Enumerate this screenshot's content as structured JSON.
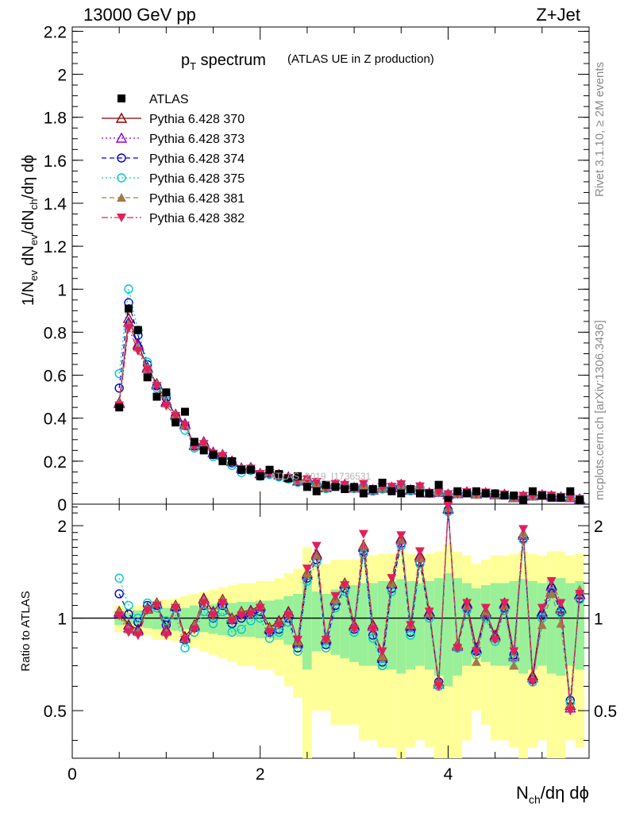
{
  "header": {
    "energy_label": "13000 GeV pp",
    "process_label": "Z+Jet"
  },
  "sidebar": {
    "rivet_label": "Rivet 3.1.10, ≥ 2M events",
    "mcplots_label": "mcplots.cern.ch [arXiv:1306.3436]"
  },
  "chart_data": [
    {
      "type": "scatter",
      "panel": "main",
      "title_main": "p",
      "title_sub": "T",
      "title_rest": " spectrum",
      "subtitle": "(ATLAS UE in Z production)",
      "ylabel": "1/N_ev dN_ev/dN_ch/dη dϕ",
      "xlabel": "N_ch/dη dϕ",
      "xlim": [
        0,
        5.5
      ],
      "ylim": [
        0,
        2.22
      ],
      "yticks": [
        0,
        0.2,
        0.4,
        0.6,
        0.8,
        1,
        1.2,
        1.4,
        1.6,
        1.8,
        2,
        2.2
      ],
      "ytick_labels": [
        "0",
        "0.2",
        "0.4",
        "0.6",
        "0.8",
        "1",
        "1.2",
        "1.4",
        "1.6",
        "1.8",
        "2",
        "2.2"
      ],
      "watermark": "ATLAS_2019_I1736531",
      "x": [
        0.5,
        0.6,
        0.7,
        0.8,
        0.9,
        1.0,
        1.1,
        1.2,
        1.3,
        1.4,
        1.5,
        1.6,
        1.7,
        1.8,
        1.9,
        2.0,
        2.1,
        2.2,
        2.3,
        2.4,
        2.5,
        2.6,
        2.7,
        2.8,
        2.9,
        3.0,
        3.1,
        3.2,
        3.3,
        3.4,
        3.5,
        3.6,
        3.7,
        3.8,
        3.9,
        4.0,
        4.1,
        4.2,
        4.3,
        4.4,
        4.5,
        4.6,
        4.7,
        4.8,
        4.9,
        5.0,
        5.1,
        5.2,
        5.3,
        5.4
      ],
      "series": [
        {
          "name": "ATLAS",
          "marker": "square-filled",
          "color": "#000000",
          "line": "none",
          "values": [
            0.45,
            0.91,
            0.81,
            0.59,
            0.5,
            0.52,
            0.38,
            0.43,
            0.29,
            0.25,
            0.23,
            0.2,
            0.2,
            0.16,
            0.16,
            0.13,
            0.16,
            0.14,
            0.12,
            0.13,
            0.08,
            0.06,
            0.09,
            0.08,
            0.07,
            0.08,
            0.05,
            0.07,
            0.1,
            0.06,
            0.05,
            0.07,
            0.05,
            0.05,
            0.09,
            0.02,
            0.06,
            0.05,
            0.06,
            0.05,
            0.05,
            0.04,
            0.04,
            0.02,
            0.06,
            0.04,
            0.03,
            0.03,
            0.06,
            0.02
          ]
        },
        {
          "name": "Pythia 6.428 370",
          "marker": "triangle-open",
          "color": "#8b0000",
          "line": "solid"
        },
        {
          "name": "Pythia 6.428 373",
          "marker": "triangle-open",
          "color": "#9400d3",
          "line": "dotted"
        },
        {
          "name": "Pythia 6.428 374",
          "marker": "circle-open",
          "color": "#0000cd",
          "line": "dashed"
        },
        {
          "name": "Pythia 6.428 375",
          "marker": "circle-open",
          "color": "#00c8c8",
          "line": "dotted"
        },
        {
          "name": "Pythia 6.428 381",
          "marker": "triangle-filled",
          "color": "#a07a4a",
          "line": "dashed"
        },
        {
          "name": "Pythia 6.428 382",
          "marker": "triangle-down-filled",
          "color": "#e0205a",
          "line": "dashdot"
        }
      ]
    },
    {
      "type": "line",
      "panel": "ratio",
      "ylabel": "Ratio to ATLAS",
      "xlabel": "N_ch/dη dϕ",
      "xlim": [
        0,
        5.5
      ],
      "ylim": [
        0.35,
        2.35
      ],
      "xticks": [
        0,
        2,
        4
      ],
      "xtick_labels": [
        "0",
        "2",
        "4"
      ],
      "yticks": [
        0.5,
        1,
        2
      ],
      "ytick_labels": [
        "0.5",
        "1",
        "2"
      ],
      "x": [
        0.5,
        0.6,
        0.7,
        0.8,
        0.9,
        1.0,
        1.1,
        1.2,
        1.3,
        1.4,
        1.5,
        1.6,
        1.7,
        1.8,
        1.9,
        2.0,
        2.1,
        2.2,
        2.3,
        2.4,
        2.5,
        2.6,
        2.7,
        2.8,
        2.9,
        3.0,
        3.1,
        3.2,
        3.3,
        3.4,
        3.5,
        3.6,
        3.7,
        3.8,
        3.9,
        4.0,
        4.1,
        4.2,
        4.3,
        4.4,
        4.5,
        4.6,
        4.7,
        4.8,
        4.9,
        5.0,
        5.1,
        5.2,
        5.3,
        5.4
      ],
      "ratio_370": [
        1.05,
        0.95,
        0.92,
        1.08,
        1.12,
        0.92,
        1.1,
        0.87,
        0.95,
        1.16,
        1.05,
        1.15,
        1.0,
        1.05,
        1.06,
        1.1,
        0.93,
        0.98,
        1.05,
        0.84,
        1.4,
        1.62,
        0.86,
        1.15,
        1.3,
        0.95,
        1.72,
        0.95,
        0.75,
        1.3,
        1.82,
        0.95,
        1.6,
        1.05,
        0.62,
        2.28,
        0.82,
        1.12,
        0.8,
        1.05,
        0.88,
        1.12,
        0.76,
        1.88,
        0.65,
        1.05,
        1.28,
        1.08,
        0.52,
        1.2
      ],
      "ratio_373": [
        1.04,
        0.93,
        0.91,
        1.07,
        1.11,
        0.91,
        1.09,
        0.86,
        0.94,
        1.15,
        1.04,
        1.14,
        0.99,
        1.04,
        1.05,
        1.09,
        0.92,
        0.97,
        1.04,
        0.83,
        1.38,
        1.6,
        0.85,
        1.14,
        1.29,
        0.94,
        1.7,
        0.94,
        0.74,
        1.29,
        1.8,
        0.94,
        1.58,
        1.04,
        0.61,
        2.26,
        0.81,
        1.11,
        0.79,
        1.04,
        0.87,
        1.11,
        0.75,
        1.86,
        0.64,
        1.04,
        1.27,
        1.07,
        0.51,
        1.19
      ],
      "ratio_374": [
        1.2,
        1.03,
        0.97,
        1.1,
        1.1,
        0.95,
        1.08,
        0.85,
        0.93,
        1.1,
        1.0,
        1.1,
        0.96,
        1.0,
        1.03,
        1.05,
        0.9,
        0.92,
        1.0,
        0.8,
        1.35,
        1.55,
        0.82,
        1.1,
        1.25,
        0.92,
        1.65,
        0.88,
        0.72,
        1.25,
        1.75,
        0.9,
        1.52,
        1.02,
        0.62,
        2.25,
        0.8,
        1.08,
        0.78,
        1.02,
        0.86,
        1.08,
        0.76,
        1.82,
        0.63,
        1.02,
        1.25,
        1.05,
        0.54,
        1.16
      ],
      "ratio_375": [
        1.35,
        1.1,
        1.0,
        1.12,
        1.08,
        0.98,
        1.02,
        0.8,
        0.9,
        1.05,
        0.96,
        1.05,
        0.9,
        0.92,
        0.98,
        1.0,
        0.86,
        0.9,
        0.97,
        0.78,
        1.32,
        1.52,
        0.8,
        1.08,
        1.22,
        0.9,
        1.62,
        0.86,
        0.7,
        1.22,
        1.72,
        0.88,
        1.5,
        1.0,
        0.6,
        2.22,
        0.8,
        1.06,
        0.76,
        1.0,
        0.84,
        1.06,
        0.74,
        1.8,
        0.62,
        1.0,
        1.22,
        1.04,
        0.53,
        1.15
      ],
      "ratio_381": [
        1.05,
        0.92,
        0.9,
        1.07,
        1.12,
        0.9,
        1.1,
        0.86,
        0.95,
        1.15,
        1.04,
        1.15,
        1.0,
        1.05,
        1.05,
        1.1,
        0.93,
        0.97,
        1.04,
        0.84,
        1.4,
        1.6,
        0.86,
        1.15,
        1.3,
        0.94,
        1.72,
        0.94,
        0.75,
        1.3,
        1.8,
        0.95,
        1.58,
        1.04,
        0.62,
        2.28,
        0.82,
        1.1,
        0.72,
        1.05,
        0.86,
        1.1,
        0.7,
        1.9,
        0.64,
        0.95,
        1.2,
        0.96,
        0.52,
        1.24
      ],
      "ratio_382": [
        1.02,
        0.9,
        0.88,
        1.06,
        1.1,
        0.88,
        1.08,
        0.85,
        0.92,
        1.12,
        1.02,
        1.12,
        0.98,
        1.02,
        1.03,
        1.08,
        0.9,
        0.95,
        1.02,
        0.85,
        1.45,
        1.72,
        0.85,
        1.18,
        1.28,
        0.92,
        1.88,
        0.92,
        0.78,
        1.35,
        1.86,
        0.95,
        1.65,
        1.05,
        0.6,
        2.32,
        0.8,
        1.12,
        0.78,
        1.08,
        0.85,
        1.12,
        0.78,
        1.95,
        0.62,
        1.08,
        1.32,
        1.12,
        0.5,
        1.2
      ],
      "band_inner_half_width": [
        0.05,
        0.04,
        0.06,
        0.07,
        0.08,
        0.08,
        0.09,
        0.08,
        0.1,
        0.1,
        0.11,
        0.12,
        0.12,
        0.13,
        0.13,
        0.14,
        0.14,
        0.15,
        0.18,
        0.2,
        0.32,
        0.22,
        0.2,
        0.24,
        0.26,
        0.28,
        0.3,
        0.3,
        0.32,
        0.32,
        0.34,
        0.32,
        0.3,
        0.32,
        0.35,
        0.4,
        0.35,
        0.3,
        0.25,
        0.28,
        0.3,
        0.3,
        0.32,
        0.34,
        0.32,
        0.3,
        0.34,
        0.35,
        0.3,
        0.32
      ],
      "band_outer_half_width": [
        0.1,
        0.08,
        0.1,
        0.12,
        0.15,
        0.15,
        0.16,
        0.18,
        0.2,
        0.22,
        0.24,
        0.26,
        0.28,
        0.3,
        0.3,
        0.32,
        0.32,
        0.35,
        0.4,
        0.45,
        0.7,
        0.5,
        0.5,
        0.55,
        0.55,
        0.55,
        0.6,
        0.6,
        0.62,
        0.62,
        0.65,
        0.62,
        0.6,
        0.62,
        0.65,
        0.75,
        0.65,
        0.6,
        0.5,
        0.55,
        0.6,
        0.6,
        0.62,
        0.65,
        0.62,
        0.6,
        0.65,
        0.65,
        0.6,
        0.62
      ]
    }
  ]
}
